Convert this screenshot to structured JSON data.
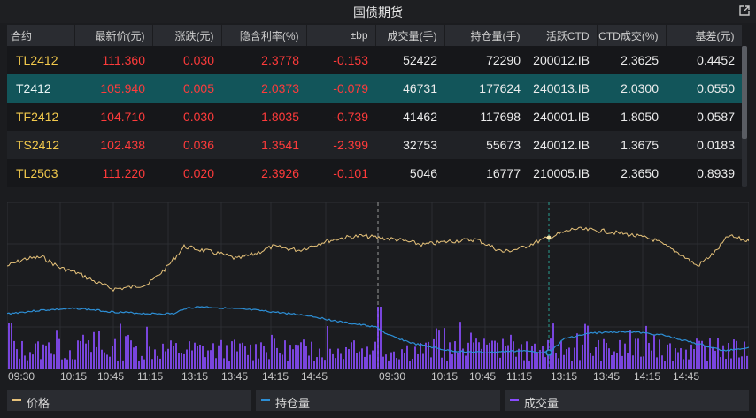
{
  "window": {
    "title": "国债期货"
  },
  "table": {
    "headers": [
      "合约",
      "最新价(元)",
      "涨跌(元)",
      "隐含利率(%)",
      "±bp",
      "成交量(手)",
      "持仓量(手)",
      "活跃CTD",
      "CTD成交(%)",
      "基差(元)"
    ],
    "rows": [
      [
        "TL2412",
        "111.360",
        "0.030",
        "2.3778",
        "-0.153",
        "52422",
        "72290",
        "200012.IB",
        "2.3625",
        "0.4452"
      ],
      [
        "T2412",
        "105.940",
        "0.005",
        "2.0373",
        "-0.079",
        "46731",
        "177624",
        "240013.IB",
        "2.0300",
        "0.0550"
      ],
      [
        "TF2412",
        "104.710",
        "0.030",
        "1.8035",
        "-0.739",
        "41462",
        "117698",
        "240001.IB",
        "1.8050",
        "0.0587"
      ],
      [
        "TS2412",
        "102.438",
        "0.036",
        "1.3541",
        "-2.399",
        "32753",
        "55673",
        "240012.IB",
        "1.3675",
        "0.0183"
      ],
      [
        "TL2503",
        "111.220",
        "0.020",
        "2.3926",
        "-0.101",
        "5046",
        "16777",
        "210005.IB",
        "2.3650",
        "0.8939"
      ]
    ],
    "selected_row": 1
  },
  "chart_data": {
    "type": "line",
    "x_ticks": [
      "09:30",
      "10:15",
      "10:45",
      "11:15",
      "13:15",
      "13:45",
      "14:15",
      "14:45",
      "09:30",
      "10:15",
      "10:45",
      "11:15",
      "13:15",
      "13:45",
      "14:15",
      "14:45"
    ],
    "session_divider_after_tick": 8,
    "series": [
      {
        "name": "价格",
        "color": "#e6c27a"
      },
      {
        "name": "持仓量",
        "color": "#2d8fd6"
      },
      {
        "name": "成交量",
        "color": "#8a4cff"
      }
    ],
    "grid": true
  },
  "legend": {
    "price": "价格",
    "open_interest": "持仓量",
    "volume": "成交量"
  },
  "colors": {
    "price": "#e6c27a",
    "open_interest": "#2d8fd6",
    "volume": "#8a4cff",
    "up": "#ff3b3b",
    "contract": "#f2c94c",
    "selected": "#12555a"
  }
}
